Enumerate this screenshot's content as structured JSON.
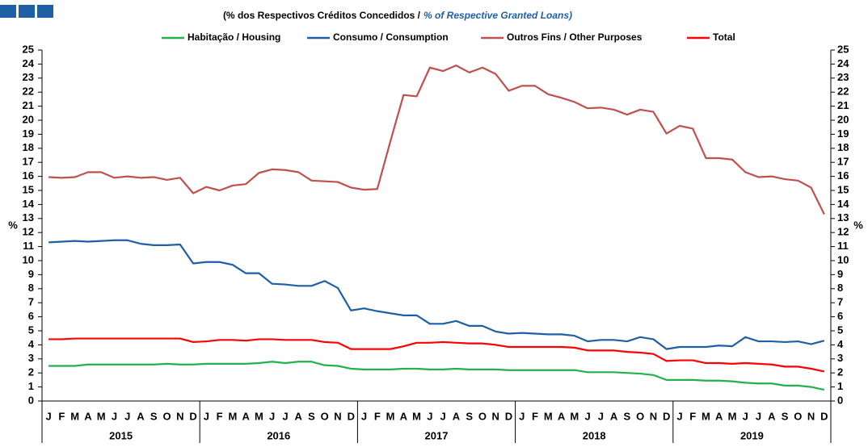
{
  "chart_data": {
    "type": "line",
    "subtitle_pt": "(% dos Respectivos  Créditos Concedidos  /",
    "subtitle_en": "% of Respective Granted Loans)",
    "y_label": "%",
    "y2_label": "%",
    "categories": [
      "J",
      "F",
      "M",
      "A",
      "M",
      "J",
      "J",
      "A",
      "S",
      "O",
      "N",
      "D",
      "J",
      "F",
      "M",
      "A",
      "M",
      "J",
      "J",
      "A",
      "S",
      "O",
      "N",
      "D",
      "J",
      "F",
      "M",
      "A",
      "M",
      "J",
      "J",
      "A",
      "S",
      "O",
      "N",
      "D",
      "J",
      "F",
      "M",
      "A",
      "M",
      "J",
      "J",
      "A",
      "S",
      "O",
      "N",
      "D",
      "J",
      "F",
      "M",
      "A",
      "M",
      "J",
      "J",
      "A",
      "S",
      "O",
      "N",
      "D"
    ],
    "years": [
      "2015",
      "2016",
      "2017",
      "2018",
      "2019"
    ],
    "legend": "top",
    "series": [
      {
        "name": "Habitação / Housing",
        "color": "#22b14c",
        "values": [
          2.5,
          2.5,
          2.5,
          2.6,
          2.6,
          2.6,
          2.6,
          2.6,
          2.6,
          2.65,
          2.6,
          2.6,
          2.65,
          2.65,
          2.65,
          2.65,
          2.7,
          2.8,
          2.7,
          2.8,
          2.8,
          2.55,
          2.5,
          2.3,
          2.25,
          2.25,
          2.25,
          2.3,
          2.3,
          2.25,
          2.25,
          2.3,
          2.25,
          2.25,
          2.25,
          2.2,
          2.2,
          2.2,
          2.2,
          2.2,
          2.2,
          2.05,
          2.05,
          2.05,
          2.0,
          1.95,
          1.85,
          1.5,
          1.5,
          1.5,
          1.45,
          1.45,
          1.4,
          1.3,
          1.25,
          1.25,
          1.1,
          1.1,
          1.0,
          0.8
        ]
      },
      {
        "name": "Consumo / Consumption",
        "color": "#1f5fa6",
        "values": [
          11.3,
          11.35,
          11.4,
          11.35,
          11.4,
          11.45,
          11.45,
          11.2,
          11.1,
          11.1,
          11.15,
          9.8,
          9.9,
          9.9,
          9.7,
          9.1,
          9.1,
          8.35,
          8.3,
          8.2,
          8.2,
          8.55,
          8.05,
          6.45,
          6.6,
          6.4,
          6.25,
          6.1,
          6.1,
          5.5,
          5.5,
          5.7,
          5.35,
          5.35,
          4.95,
          4.8,
          4.85,
          4.8,
          4.75,
          4.75,
          4.65,
          4.25,
          4.35,
          4.35,
          4.25,
          4.55,
          4.4,
          3.7,
          3.85,
          3.85,
          3.85,
          3.95,
          3.9,
          4.55,
          4.25,
          4.25,
          4.2,
          4.25,
          4.05,
          4.3
        ]
      },
      {
        "name": "Outros Fins / Other Purposes",
        "color": "#c0504d",
        "values": [
          15.95,
          15.9,
          15.95,
          16.3,
          16.3,
          15.9,
          16.0,
          15.9,
          15.95,
          15.75,
          15.9,
          14.8,
          15.25,
          15.0,
          15.35,
          15.45,
          16.25,
          16.5,
          16.45,
          16.3,
          15.7,
          15.65,
          15.6,
          15.2,
          15.05,
          15.1,
          18.5,
          21.8,
          21.7,
          23.75,
          23.5,
          23.9,
          23.4,
          23.75,
          23.3,
          22.1,
          22.45,
          22.45,
          21.85,
          21.6,
          21.3,
          20.85,
          20.9,
          20.75,
          20.4,
          20.75,
          20.6,
          19.05,
          19.6,
          19.4,
          17.3,
          17.3,
          17.2,
          16.3,
          15.95,
          16.0,
          15.8,
          15.7,
          15.2,
          13.3
        ]
      },
      {
        "name": "Total",
        "color": "#ff0000",
        "values": [
          4.4,
          4.4,
          4.45,
          4.45,
          4.45,
          4.45,
          4.45,
          4.45,
          4.45,
          4.45,
          4.45,
          4.2,
          4.25,
          4.35,
          4.35,
          4.3,
          4.4,
          4.4,
          4.35,
          4.35,
          4.35,
          4.2,
          4.15,
          3.7,
          3.7,
          3.7,
          3.7,
          3.9,
          4.15,
          4.15,
          4.2,
          4.15,
          4.1,
          4.1,
          4.0,
          3.85,
          3.85,
          3.85,
          3.85,
          3.85,
          3.8,
          3.6,
          3.6,
          3.6,
          3.5,
          3.45,
          3.35,
          2.85,
          2.9,
          2.9,
          2.7,
          2.7,
          2.65,
          2.7,
          2.65,
          2.6,
          2.45,
          2.45,
          2.3,
          2.1
        ]
      }
    ],
    "ylim": [
      0,
      25
    ],
    "yticks": [
      0,
      1,
      2,
      3,
      4,
      5,
      6,
      7,
      8,
      9,
      10,
      11,
      12,
      13,
      14,
      15,
      16,
      17,
      18,
      19,
      20,
      21,
      22,
      23,
      24,
      25
    ],
    "y2lim": [
      0,
      25
    ],
    "y2ticks": [
      0,
      1,
      2,
      3,
      4,
      5,
      6,
      7,
      8,
      9,
      10,
      11,
      12,
      13,
      14,
      15,
      16,
      17,
      18,
      19,
      20,
      21,
      22,
      23,
      24,
      25
    ]
  }
}
